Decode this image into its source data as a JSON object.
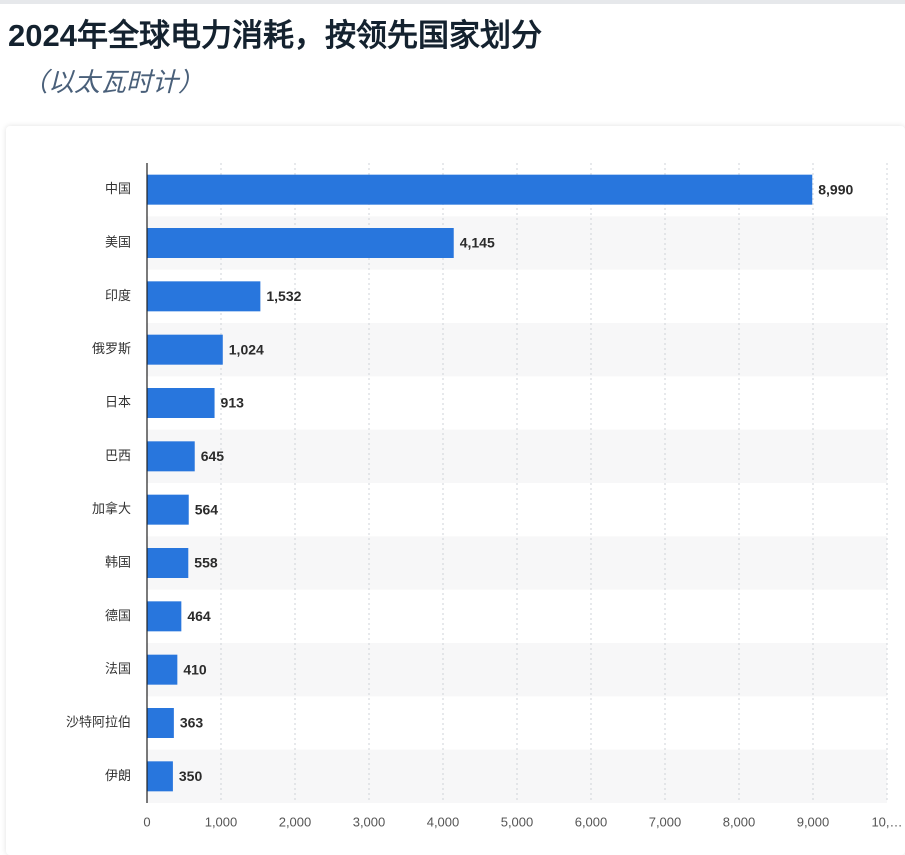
{
  "chart_data": {
    "type": "barh",
    "title": "2024年全球电力消耗，按领先国家划分",
    "subtitle": "（以太瓦时计）",
    "categories": [
      "中国",
      "美国",
      "印度",
      "俄罗斯",
      "日本",
      "巴西",
      "加拿大",
      "韩国",
      "德国",
      "法国",
      "沙特阿拉伯",
      "伊朗"
    ],
    "values": [
      8990,
      4145,
      1532,
      1024,
      913,
      645,
      564,
      558,
      464,
      410,
      363,
      350
    ],
    "value_labels": [
      "8,990",
      "4,145",
      "1,532",
      "1,024",
      "913",
      "645",
      "564",
      "558",
      "464",
      "410",
      "363",
      "350"
    ],
    "color": "#2876dd",
    "xlim": [
      0,
      10000
    ],
    "xticks": [
      0,
      {
        "value": 1000,
        "label": "1,000"
      },
      {
        "value": 2000,
        "label": "2,000"
      },
      {
        "value": 3000,
        "label": "3,000"
      },
      {
        "value": 4000,
        "label": "4,000"
      },
      {
        "value": 5000,
        "label": "5,000"
      },
      {
        "value": 6000,
        "label": "6,000"
      },
      {
        "value": 7000,
        "label": "7,000"
      },
      {
        "value": 8000,
        "label": "8,000"
      },
      {
        "value": 9000,
        "label": "9,000"
      },
      {
        "value": 10000,
        "label": "10,…"
      }
    ],
    "grid": true
  }
}
